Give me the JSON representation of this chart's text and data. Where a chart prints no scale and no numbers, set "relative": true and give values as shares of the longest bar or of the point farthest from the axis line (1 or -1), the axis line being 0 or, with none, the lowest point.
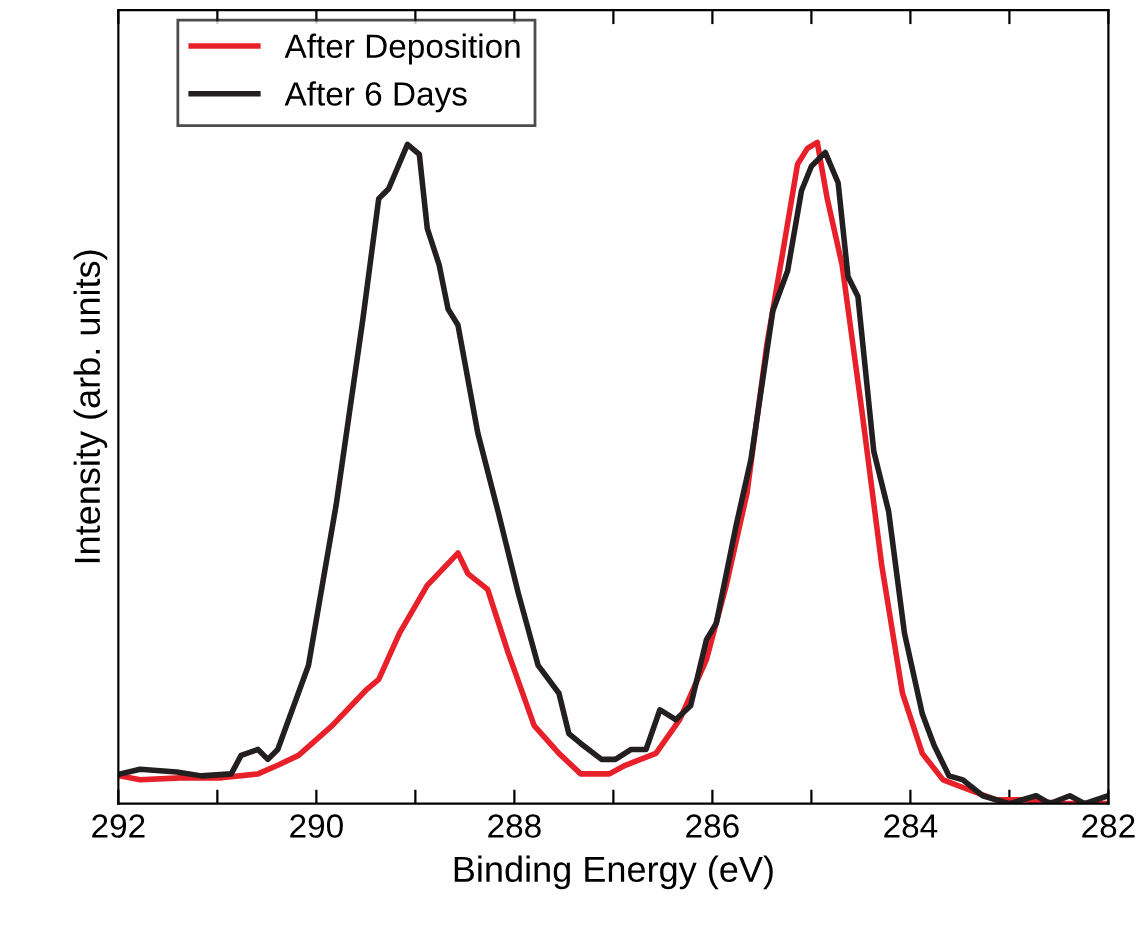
{
  "chart_data": {
    "type": "line",
    "relative": true,
    "xlabel": "Binding Energy (eV)",
    "ylabel": "Intensity (arb. units)",
    "xlim": [
      292,
      282
    ],
    "xticks": [
      292,
      {
        "value": 291,
        "label": null
      },
      290,
      {
        "value": 289,
        "label": null
      },
      288,
      {
        "value": 287,
        "label": null
      },
      286,
      {
        "value": 285,
        "label": null
      },
      284,
      {
        "value": 283,
        "label": null
      },
      282
    ],
    "legend": "top left",
    "grid": false,
    "marker": "none",
    "line_style": "solid",
    "series": [
      {
        "name": "After Deposition",
        "color": "#e8202a",
        "x": [
          291.98,
          291.78,
          291.37,
          290.96,
          290.59,
          290.39,
          290.18,
          289.84,
          289.49,
          289.37,
          289.16,
          288.88,
          288.57,
          288.47,
          288.27,
          288.06,
          287.8,
          287.55,
          287.33,
          287.04,
          286.88,
          286.57,
          286.33,
          286.06,
          285.86,
          285.65,
          285.45,
          285.29,
          285.14,
          285.04,
          284.94,
          284.84,
          284.69,
          284.49,
          284.29,
          284.08,
          283.88,
          283.67,
          283.41,
          283.14,
          282.86,
          282.45,
          282.04
        ],
        "values": [
          0.042,
          0.036,
          0.039,
          0.039,
          0.045,
          0.058,
          0.073,
          0.118,
          0.173,
          0.188,
          0.258,
          0.33,
          0.379,
          0.348,
          0.324,
          0.227,
          0.118,
          0.076,
          0.045,
          0.045,
          0.058,
          0.076,
          0.127,
          0.218,
          0.33,
          0.47,
          0.694,
          0.833,
          0.967,
          0.991,
          1.0,
          0.915,
          0.815,
          0.594,
          0.361,
          0.167,
          0.076,
          0.036,
          0.021,
          0.006,
          0.006,
          0.0,
          0.0
        ]
      },
      {
        "name": "After 6 Days",
        "color": "#231f20",
        "x": [
          291.98,
          291.78,
          291.41,
          291.16,
          290.86,
          290.76,
          290.59,
          290.49,
          290.39,
          290.08,
          289.8,
          289.53,
          289.37,
          289.27,
          289.08,
          288.96,
          288.88,
          288.76,
          288.67,
          288.57,
          288.37,
          288.16,
          287.96,
          287.76,
          287.55,
          287.45,
          287.33,
          287.12,
          286.98,
          286.82,
          286.67,
          286.53,
          286.37,
          286.22,
          286.06,
          285.96,
          285.76,
          285.61,
          285.39,
          285.24,
          285.1,
          285.0,
          284.86,
          284.73,
          284.63,
          284.53,
          284.37,
          284.22,
          284.06,
          283.88,
          283.76,
          283.61,
          283.47,
          283.27,
          283.0,
          282.73,
          282.59,
          282.39,
          282.24,
          282.0
        ],
        "values": [
          0.045,
          0.052,
          0.048,
          0.042,
          0.045,
          0.073,
          0.082,
          0.067,
          0.082,
          0.209,
          0.452,
          0.733,
          0.915,
          0.93,
          0.997,
          0.982,
          0.87,
          0.815,
          0.748,
          0.724,
          0.561,
          0.439,
          0.318,
          0.209,
          0.167,
          0.106,
          0.091,
          0.067,
          0.067,
          0.082,
          0.082,
          0.142,
          0.127,
          0.148,
          0.248,
          0.273,
          0.421,
          0.521,
          0.745,
          0.806,
          0.927,
          0.964,
          0.985,
          0.939,
          0.797,
          0.767,
          0.533,
          0.442,
          0.258,
          0.136,
          0.088,
          0.042,
          0.036,
          0.012,
          0.0,
          0.012,
          0.0,
          0.012,
          0.0,
          0.012
        ]
      }
    ]
  }
}
